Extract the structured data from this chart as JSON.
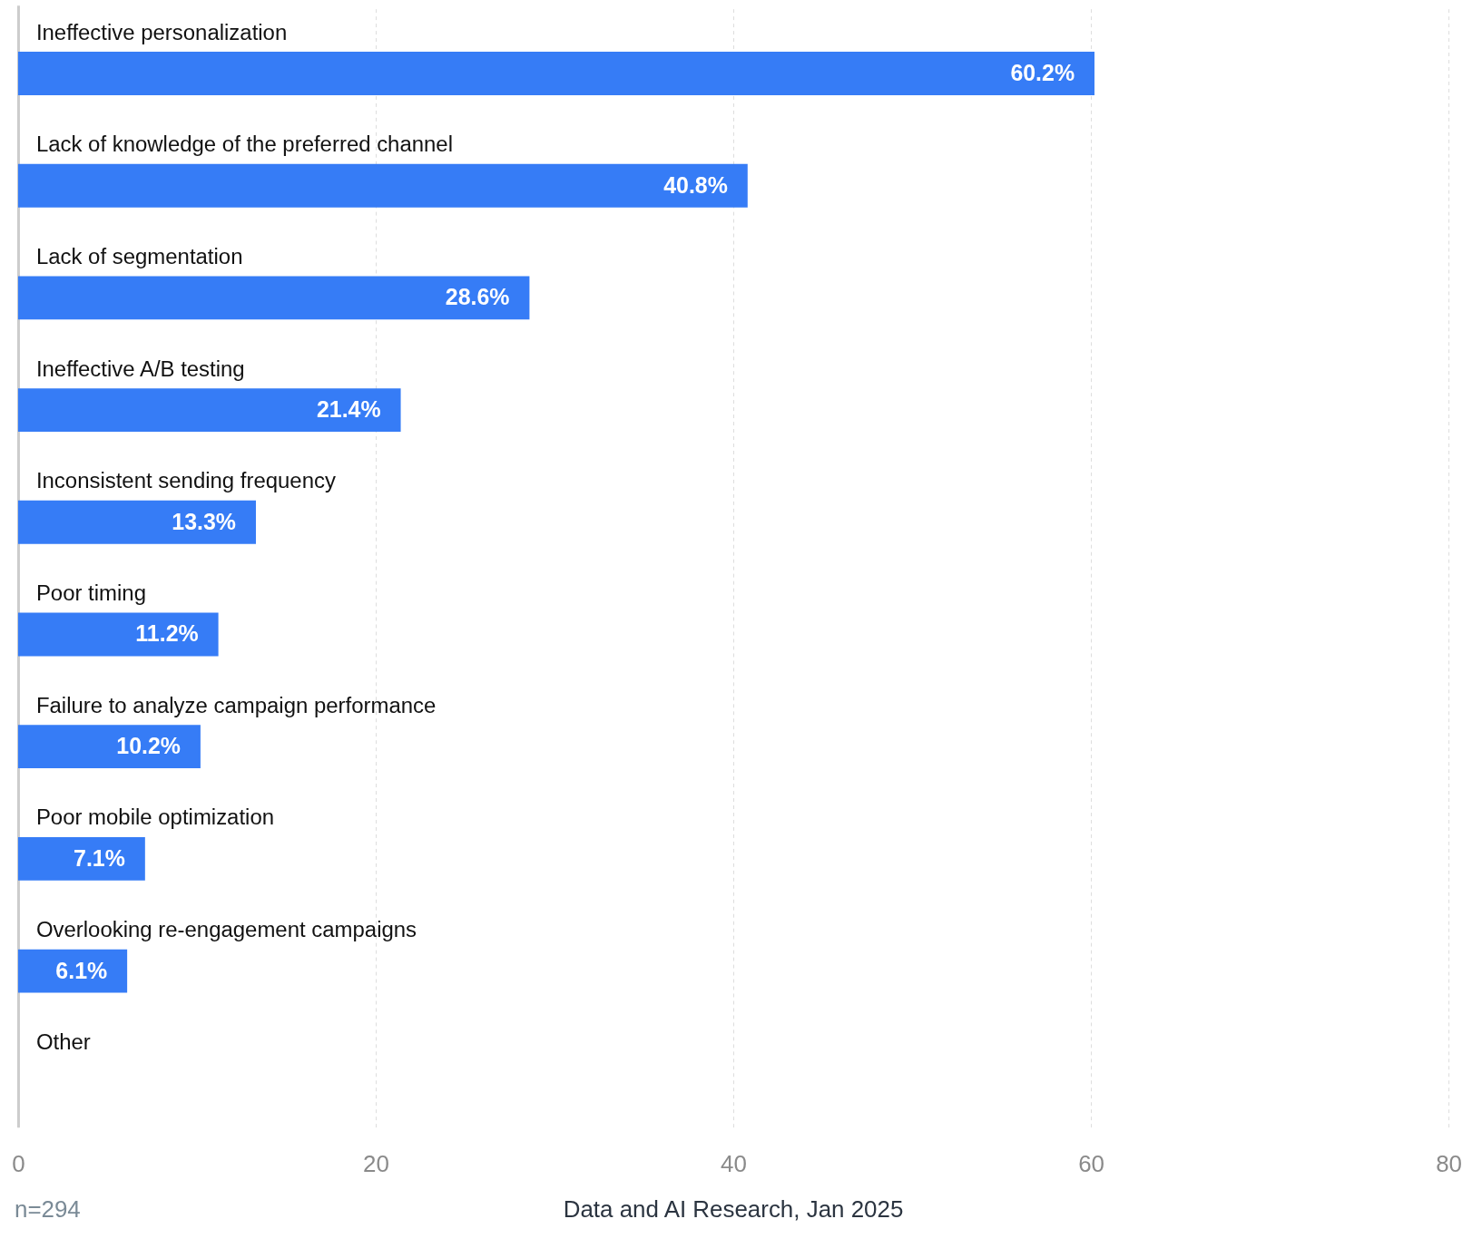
{
  "chart_data": {
    "type": "bar",
    "orientation": "horizontal",
    "categories": [
      "Ineffective personalization",
      "Lack of knowledge of the preferred channel",
      "Lack of segmentation",
      "Ineffective A/B testing",
      "Inconsistent sending frequency",
      "Poor timing",
      "Failure to analyze campaign performance",
      "Poor mobile optimization",
      "Overlooking re-engagement campaigns",
      "Other"
    ],
    "values": [
      60.2,
      40.8,
      28.6,
      21.4,
      13.3,
      11.2,
      10.2,
      7.1,
      6.1,
      null
    ],
    "value_labels": [
      "60.2%",
      "40.8%",
      "28.6%",
      "21.4%",
      "13.3%",
      "11.2%",
      "10.2%",
      "7.1%",
      "6.1%",
      null
    ],
    "color": "#367cf6",
    "xlim": [
      0,
      80
    ],
    "xticks": [
      0,
      20,
      40,
      60,
      80
    ],
    "grid": "x",
    "annotations": [
      "n=294",
      "Data and AI Research, Jan 2025"
    ]
  }
}
